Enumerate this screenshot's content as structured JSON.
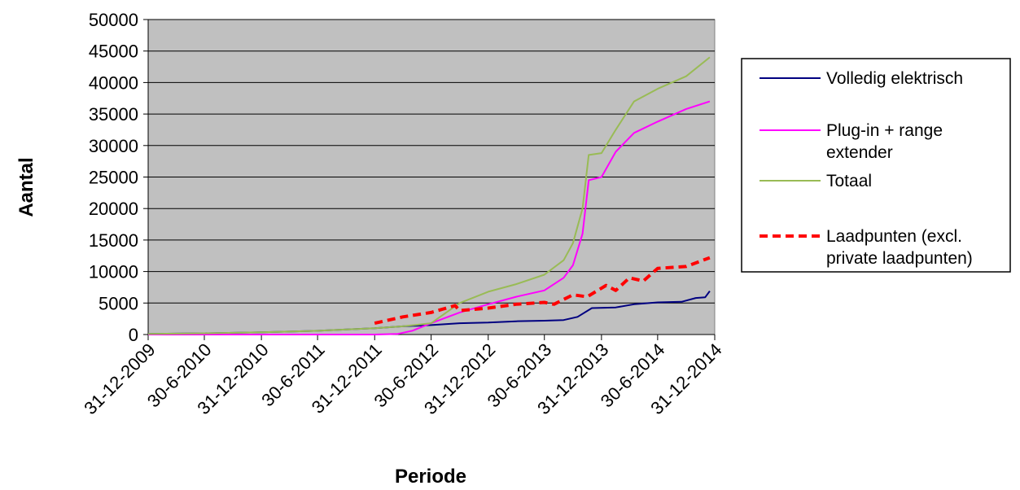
{
  "chart_data": {
    "type": "line",
    "title": "",
    "xlabel": "Periode",
    "ylabel": "Aantal",
    "ylim": [
      0,
      50000
    ],
    "yticks": [
      "0",
      "5000",
      "10000",
      "15000",
      "20000",
      "25000",
      "30000",
      "35000",
      "40000",
      "45000",
      "50000"
    ],
    "xlim": [
      "2009-12-31",
      "2014-12-31"
    ],
    "xticks": [
      {
        "label": "31-12-2009",
        "date": "2009-12-31"
      },
      {
        "label": "30-6-2010",
        "date": "2010-06-30"
      },
      {
        "label": "31-12-2010",
        "date": "2010-12-31"
      },
      {
        "label": "30-6-2011",
        "date": "2011-06-30"
      },
      {
        "label": "31-12-2011",
        "date": "2011-12-31"
      },
      {
        "label": "30-6-2012",
        "date": "2012-06-30"
      },
      {
        "label": "31-12-2012",
        "date": "2012-12-31"
      },
      {
        "label": "30-6-2013",
        "date": "2013-06-30"
      },
      {
        "label": "31-12-2013",
        "date": "2013-12-31"
      },
      {
        "label": "30-6-2014",
        "date": "2014-06-30"
      },
      {
        "label": "31-12-2014",
        "date": "2014-12-31"
      }
    ],
    "grid": true,
    "plot_background": "#c0c0c0",
    "legend_position": "right",
    "series": [
      {
        "name": "Volledig elektrisch",
        "color": "#000080",
        "style": "solid",
        "points": [
          [
            "2009-12-31",
            100
          ],
          [
            "2010-06-30",
            200
          ],
          [
            "2010-12-31",
            350
          ],
          [
            "2011-06-30",
            600
          ],
          [
            "2011-12-31",
            1000
          ],
          [
            "2012-03-31",
            1300
          ],
          [
            "2012-06-30",
            1500
          ],
          [
            "2012-09-30",
            1800
          ],
          [
            "2012-12-31",
            1900
          ],
          [
            "2013-03-31",
            2100
          ],
          [
            "2013-06-30",
            2200
          ],
          [
            "2013-08-31",
            2300
          ],
          [
            "2013-10-15",
            2800
          ],
          [
            "2013-11-30",
            4200
          ],
          [
            "2014-02-15",
            4300
          ],
          [
            "2014-04-15",
            4800
          ],
          [
            "2014-06-30",
            5100
          ],
          [
            "2014-09-15",
            5200
          ],
          [
            "2014-10-31",
            5800
          ],
          [
            "2014-11-30",
            5900
          ],
          [
            "2014-12-15",
            6900
          ]
        ]
      },
      {
        "name": "Plug-in + range extender",
        "color": "#ff00ff",
        "style": "solid",
        "points": [
          [
            "2009-12-31",
            0
          ],
          [
            "2010-06-30",
            0
          ],
          [
            "2010-12-31",
            0
          ],
          [
            "2011-06-30",
            0
          ],
          [
            "2011-12-31",
            0
          ],
          [
            "2012-03-15",
            100
          ],
          [
            "2012-04-30",
            600
          ],
          [
            "2012-06-30",
            1800
          ],
          [
            "2012-09-30",
            3500
          ],
          [
            "2012-12-31",
            4800
          ],
          [
            "2013-03-31",
            6000
          ],
          [
            "2013-06-30",
            7000
          ],
          [
            "2013-08-31",
            9000
          ],
          [
            "2013-09-30",
            11000
          ],
          [
            "2013-10-31",
            16000
          ],
          [
            "2013-11-20",
            24500
          ],
          [
            "2013-12-31",
            25000
          ],
          [
            "2014-02-15",
            29000
          ],
          [
            "2014-04-15",
            32000
          ],
          [
            "2014-06-30",
            33800
          ],
          [
            "2014-09-30",
            35800
          ],
          [
            "2014-12-15",
            37000
          ]
        ]
      },
      {
        "name": "Totaal",
        "color": "#99bb55",
        "style": "solid",
        "points": [
          [
            "2009-12-31",
            100
          ],
          [
            "2010-06-30",
            200
          ],
          [
            "2010-12-31",
            350
          ],
          [
            "2011-06-30",
            600
          ],
          [
            "2011-12-31",
            1000
          ],
          [
            "2012-03-31",
            1300
          ],
          [
            "2012-06-30",
            1800
          ],
          [
            "2012-09-30",
            5000
          ],
          [
            "2012-12-31",
            6800
          ],
          [
            "2013-03-31",
            8000
          ],
          [
            "2013-06-30",
            9500
          ],
          [
            "2013-08-31",
            11800
          ],
          [
            "2013-09-30",
            14500
          ],
          [
            "2013-10-31",
            20000
          ],
          [
            "2013-11-20",
            28500
          ],
          [
            "2013-12-31",
            28800
          ],
          [
            "2014-02-15",
            32500
          ],
          [
            "2014-04-15",
            37000
          ],
          [
            "2014-06-30",
            39000
          ],
          [
            "2014-09-30",
            41000
          ],
          [
            "2014-12-15",
            44000
          ]
        ]
      },
      {
        "name": "Laadpunten (excl. private laadpunten)",
        "color": "#ff0000",
        "style": "dashed",
        "points": [
          [
            "2011-12-31",
            1800
          ],
          [
            "2012-03-31",
            2800
          ],
          [
            "2012-06-30",
            3500
          ],
          [
            "2012-09-15",
            4600
          ],
          [
            "2012-09-30",
            3800
          ],
          [
            "2012-12-31",
            4200
          ],
          [
            "2013-03-31",
            4800
          ],
          [
            "2013-06-30",
            5100
          ],
          [
            "2013-07-31",
            4800
          ],
          [
            "2013-09-30",
            6300
          ],
          [
            "2013-11-15",
            6000
          ],
          [
            "2014-01-15",
            7800
          ],
          [
            "2014-02-15",
            7000
          ],
          [
            "2014-03-31",
            9000
          ],
          [
            "2014-05-15",
            8500
          ],
          [
            "2014-06-30",
            10500
          ],
          [
            "2014-09-30",
            10800
          ],
          [
            "2014-12-15",
            12200
          ]
        ]
      }
    ],
    "legend": [
      {
        "lines": [
          "Volledig elektrisch"
        ]
      },
      {
        "lines": [
          "Plug-in + range",
          "extender"
        ]
      },
      {
        "lines": [
          "Totaal"
        ]
      },
      {
        "lines": [
          "Laadpunten (excl.",
          "private laadpunten)"
        ]
      }
    ]
  }
}
